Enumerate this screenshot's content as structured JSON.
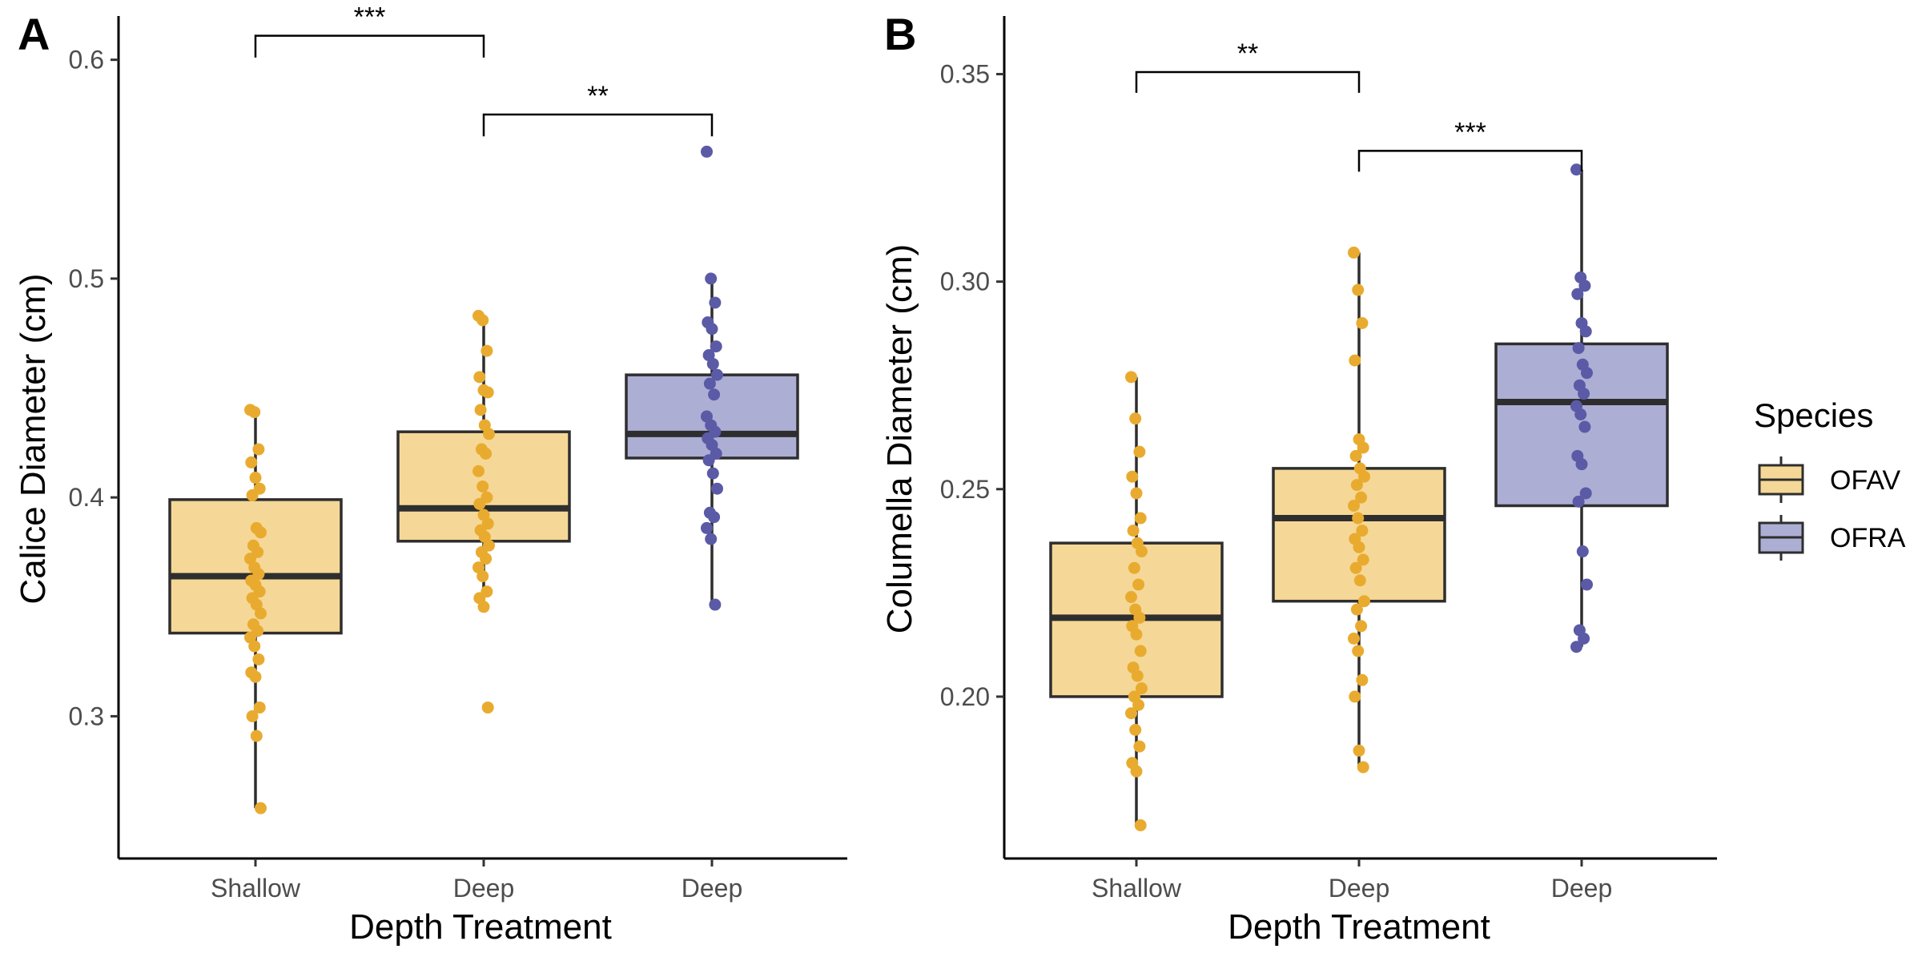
{
  "legend": {
    "title": "Species",
    "entries": [
      {
        "label": "OFAV",
        "fill": "#f5d897",
        "point": "#e9ab2f"
      },
      {
        "label": "OFRA",
        "fill": "#adaed4",
        "point": "#5b5aa6"
      }
    ]
  },
  "colors": {
    "box_outline": "#2e2e2e",
    "axis": "#000000"
  },
  "chart_data": [
    {
      "type": "box",
      "panel": "A",
      "xlabel": "Depth Treatment",
      "ylabel": "Calice Diameter (cm)",
      "ylim": [
        0.235,
        0.62
      ],
      "yticks": [
        {
          "value": 0.3,
          "label": "0.3"
        },
        {
          "value": 0.4,
          "label": "0.4"
        },
        {
          "value": 0.5,
          "label": "0.5"
        },
        {
          "value": 0.6,
          "label": "0.6"
        }
      ],
      "categories": [
        "Shallow",
        "Deep",
        "Deep"
      ],
      "boxes": [
        {
          "category": "Shallow",
          "species": "OFAV",
          "min": 0.258,
          "q1": 0.338,
          "median": 0.364,
          "q3": 0.399,
          "max": 0.44,
          "points": [
            0.44,
            0.439,
            0.422,
            0.416,
            0.409,
            0.404,
            0.401,
            0.386,
            0.384,
            0.378,
            0.375,
            0.372,
            0.368,
            0.365,
            0.362,
            0.36,
            0.357,
            0.354,
            0.351,
            0.347,
            0.342,
            0.339,
            0.336,
            0.332,
            0.326,
            0.32,
            0.318,
            0.304,
            0.3,
            0.291,
            0.258
          ]
        },
        {
          "category": "Deep",
          "species": "OFAV",
          "min": 0.35,
          "q1": 0.38,
          "median": 0.395,
          "q3": 0.43,
          "max": 0.483,
          "points": [
            0.483,
            0.481,
            0.467,
            0.455,
            0.449,
            0.448,
            0.44,
            0.433,
            0.429,
            0.422,
            0.42,
            0.412,
            0.405,
            0.4,
            0.397,
            0.392,
            0.388,
            0.385,
            0.382,
            0.378,
            0.375,
            0.372,
            0.368,
            0.364,
            0.357,
            0.354,
            0.35,
            0.304
          ]
        },
        {
          "category": "Deep",
          "species": "OFRA",
          "min": 0.35,
          "q1": 0.418,
          "median": 0.429,
          "q3": 0.456,
          "max": 0.5,
          "points": [
            0.558,
            0.5,
            0.489,
            0.48,
            0.477,
            0.469,
            0.465,
            0.461,
            0.456,
            0.452,
            0.447,
            0.437,
            0.433,
            0.43,
            0.427,
            0.424,
            0.42,
            0.417,
            0.411,
            0.404,
            0.393,
            0.391,
            0.386,
            0.381,
            0.351
          ]
        }
      ],
      "brackets": [
        {
          "from": 0,
          "to": 1,
          "label": "***",
          "y_top": 0.611,
          "y_left_end": 0.601,
          "y_right_end": 0.601
        },
        {
          "from": 1,
          "to": 2,
          "label": "**",
          "y_top": 0.575,
          "y_left_end": 0.565,
          "y_right_end": 0.565
        }
      ]
    },
    {
      "type": "box",
      "panel": "B",
      "xlabel": "Depth Treatment",
      "ylabel": "Columella Diameter (cm)",
      "ylim": [
        0.161,
        0.364
      ],
      "yticks": [
        {
          "value": 0.2,
          "label": "0.20"
        },
        {
          "value": 0.25,
          "label": "0.25"
        },
        {
          "value": 0.3,
          "label": "0.30"
        },
        {
          "value": 0.35,
          "label": "0.35"
        }
      ],
      "categories": [
        "Shallow",
        "Deep",
        "Deep"
      ],
      "boxes": [
        {
          "category": "Shallow",
          "species": "OFAV",
          "min": 0.169,
          "q1": 0.2,
          "median": 0.219,
          "q3": 0.237,
          "max": 0.277,
          "points": [
            0.277,
            0.267,
            0.259,
            0.253,
            0.249,
            0.243,
            0.24,
            0.237,
            0.235,
            0.231,
            0.227,
            0.224,
            0.221,
            0.219,
            0.217,
            0.215,
            0.211,
            0.207,
            0.205,
            0.202,
            0.2,
            0.198,
            0.196,
            0.192,
            0.188,
            0.184,
            0.182,
            0.169
          ]
        },
        {
          "category": "Deep",
          "species": "OFAV",
          "min": 0.183,
          "q1": 0.223,
          "median": 0.243,
          "q3": 0.255,
          "max": 0.307,
          "points": [
            0.307,
            0.298,
            0.29,
            0.281,
            0.262,
            0.26,
            0.258,
            0.255,
            0.253,
            0.251,
            0.248,
            0.246,
            0.243,
            0.24,
            0.238,
            0.236,
            0.233,
            0.231,
            0.228,
            0.223,
            0.221,
            0.217,
            0.214,
            0.211,
            0.204,
            0.2,
            0.187,
            0.183
          ]
        },
        {
          "category": "Deep",
          "species": "OFRA",
          "min": 0.212,
          "q1": 0.246,
          "median": 0.271,
          "q3": 0.285,
          "max": 0.327,
          "points": [
            0.327,
            0.301,
            0.299,
            0.297,
            0.29,
            0.288,
            0.284,
            0.28,
            0.278,
            0.275,
            0.273,
            0.27,
            0.268,
            0.265,
            0.258,
            0.256,
            0.249,
            0.247,
            0.235,
            0.227,
            0.216,
            0.214,
            0.212
          ]
        }
      ],
      "brackets": [
        {
          "from": 0,
          "to": 1,
          "label": "**",
          "y_top": 0.3505,
          "y_left_end": 0.3455,
          "y_right_end": 0.3455
        },
        {
          "from": 1,
          "to": 2,
          "label": "***",
          "y_top": 0.3315,
          "y_left_end": 0.3265,
          "y_right_end": 0.3265
        }
      ]
    }
  ]
}
